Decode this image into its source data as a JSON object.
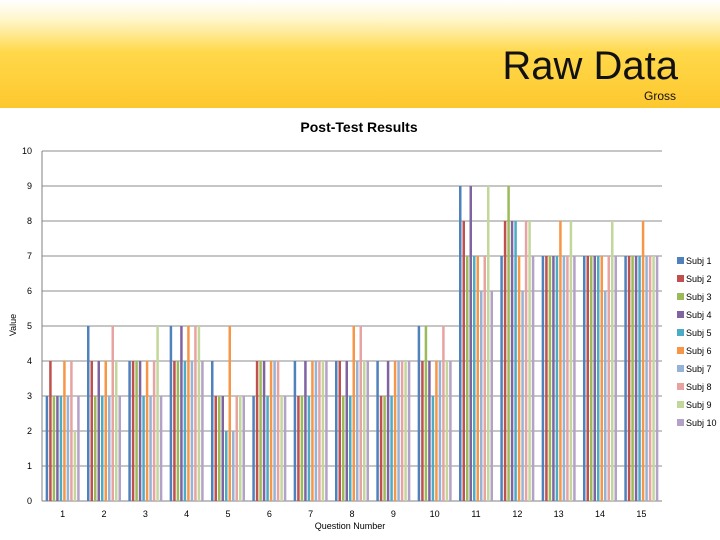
{
  "header": {
    "title": "Raw Data",
    "subtitle": "Gross"
  },
  "chart_data": {
    "type": "bar",
    "title": "Post-Test Results",
    "xlabel": "Question Number",
    "ylabel": "Value",
    "ylim": [
      0,
      10
    ],
    "yticks": [
      0,
      1,
      2,
      3,
      4,
      5,
      6,
      7,
      8,
      9,
      10
    ],
    "grid": true,
    "legend_position": "right",
    "categories": [
      "1",
      "2",
      "3",
      "4",
      "5",
      "6",
      "7",
      "8",
      "9",
      "10",
      "11",
      "12",
      "13",
      "14",
      "15"
    ],
    "series": [
      {
        "name": "Subj 1",
        "color": "#4f81bd",
        "values": [
          3,
          5,
          4,
          5,
          4,
          3,
          4,
          4,
          4,
          5,
          9,
          7,
          7,
          7,
          7
        ]
      },
      {
        "name": "Subj 2",
        "color": "#c0504d",
        "values": [
          4,
          4,
          4,
          4,
          3,
          4,
          3,
          4,
          3,
          4,
          8,
          8,
          7,
          7,
          7
        ]
      },
      {
        "name": "Subj 3",
        "color": "#9bbb59",
        "values": [
          3,
          3,
          4,
          4,
          3,
          4,
          3,
          3,
          3,
          5,
          7,
          9,
          7,
          7,
          7
        ]
      },
      {
        "name": "Subj 4",
        "color": "#8064a2",
        "values": [
          3,
          4,
          4,
          5,
          3,
          4,
          4,
          4,
          4,
          4,
          9,
          8,
          7,
          7,
          7
        ]
      },
      {
        "name": "Subj 5",
        "color": "#4bacc6",
        "values": [
          3,
          3,
          3,
          4,
          2,
          3,
          3,
          3,
          3,
          3,
          7,
          8,
          7,
          7,
          7
        ]
      },
      {
        "name": "Subj 6",
        "color": "#f79646",
        "values": [
          4,
          4,
          4,
          5,
          5,
          4,
          4,
          5,
          4,
          4,
          7,
          7,
          8,
          7,
          8
        ]
      },
      {
        "name": "Subj 7",
        "color": "#95b3d7",
        "values": [
          3,
          3,
          3,
          4,
          2,
          4,
          4,
          4,
          4,
          4,
          6,
          6,
          7,
          6,
          7
        ]
      },
      {
        "name": "Subj 8",
        "color": "#e6a3a1",
        "values": [
          4,
          5,
          4,
          5,
          3,
          4,
          4,
          5,
          4,
          5,
          7,
          8,
          7,
          7,
          7
        ]
      },
      {
        "name": "Subj 9",
        "color": "#c3d69b",
        "values": [
          2,
          4,
          5,
          5,
          3,
          3,
          4,
          4,
          4,
          4,
          9,
          8,
          8,
          8,
          7
        ]
      },
      {
        "name": "Subj 10",
        "color": "#b3a2c7",
        "values": [
          3,
          3,
          3,
          4,
          3,
          3,
          4,
          4,
          4,
          4,
          6,
          7,
          7,
          7,
          7
        ]
      }
    ]
  }
}
